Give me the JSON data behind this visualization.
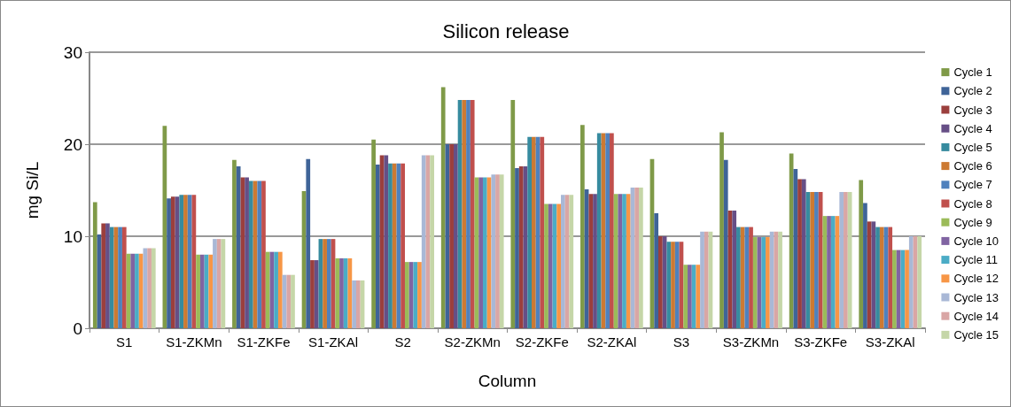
{
  "chart_data": {
    "type": "bar",
    "title": "Silicon release",
    "xlabel": "Column",
    "ylabel": "mg Si/L",
    "categories": [
      "S1",
      "S1-ZKMn",
      "S1-ZKFe",
      "S1-ZKAl",
      "S2",
      "S2-ZKMn",
      "S2-ZKFe",
      "S2-ZKAl",
      "S3",
      "S3-ZKMn",
      "S3-ZKFe",
      "S3-ZKAl"
    ],
    "ylim": [
      0,
      30
    ],
    "yticks": [
      0,
      10,
      20,
      30
    ],
    "grid": "y",
    "legend": "right",
    "series": [
      {
        "name": "Cycle 1",
        "color": "#7f9a48",
        "values": [
          13.7,
          22.0,
          18.3,
          14.9,
          20.5,
          26.2,
          24.8,
          22.1,
          18.4,
          21.3,
          19.0,
          16.1
        ]
      },
      {
        "name": "Cycle 2",
        "color": "#3f6498",
        "values": [
          10.2,
          14.1,
          17.6,
          18.4,
          17.8,
          20.0,
          17.4,
          15.1,
          12.5,
          18.3,
          17.3,
          13.6
        ]
      },
      {
        "name": "Cycle 3",
        "color": "#9b3f3d",
        "values": [
          11.4,
          14.3,
          16.4,
          7.4,
          18.8,
          20.0,
          17.6,
          14.6,
          10.0,
          12.8,
          16.2,
          11.6
        ]
      },
      {
        "name": "Cycle 4",
        "color": "#664f86",
        "values": [
          11.4,
          14.3,
          16.4,
          7.4,
          18.8,
          20.0,
          17.6,
          14.6,
          10.0,
          12.8,
          16.2,
          11.6
        ]
      },
      {
        "name": "Cycle 5",
        "color": "#378b9f",
        "values": [
          11.0,
          14.5,
          16.0,
          9.7,
          17.9,
          24.8,
          20.8,
          21.2,
          9.4,
          11.0,
          14.8,
          11.0
        ]
      },
      {
        "name": "Cycle 6",
        "color": "#cc7a33",
        "values": [
          11.0,
          14.5,
          16.0,
          9.7,
          17.9,
          24.8,
          20.8,
          21.2,
          9.4,
          11.0,
          14.8,
          11.0
        ]
      },
      {
        "name": "Cycle 7",
        "color": "#4f81bd",
        "values": [
          11.0,
          14.5,
          16.0,
          9.7,
          17.9,
          24.8,
          20.8,
          21.2,
          9.4,
          11.0,
          14.8,
          11.0
        ]
      },
      {
        "name": "Cycle 8",
        "color": "#c0504d",
        "values": [
          11.0,
          14.5,
          16.0,
          9.7,
          17.9,
          24.8,
          20.8,
          21.2,
          9.4,
          11.0,
          14.8,
          11.0
        ]
      },
      {
        "name": "Cycle 9",
        "color": "#9bbb59",
        "values": [
          8.1,
          8.0,
          8.3,
          7.6,
          7.2,
          16.4,
          13.5,
          14.6,
          6.9,
          9.9,
          12.2,
          8.5
        ]
      },
      {
        "name": "Cycle 10",
        "color": "#8064a2",
        "values": [
          8.1,
          8.0,
          8.3,
          7.6,
          7.2,
          16.4,
          13.5,
          14.6,
          6.9,
          9.9,
          12.2,
          8.5
        ]
      },
      {
        "name": "Cycle 11",
        "color": "#4bacc6",
        "values": [
          8.1,
          8.0,
          8.3,
          7.6,
          7.2,
          16.4,
          13.5,
          14.6,
          6.9,
          9.9,
          12.2,
          8.5
        ]
      },
      {
        "name": "Cycle 12",
        "color": "#f79646",
        "values": [
          8.1,
          8.0,
          8.3,
          7.6,
          7.2,
          16.4,
          13.5,
          14.6,
          6.9,
          9.9,
          12.2,
          8.5
        ]
      },
      {
        "name": "Cycle 13",
        "color": "#a9b8d6",
        "values": [
          8.7,
          9.7,
          5.8,
          5.2,
          18.8,
          16.7,
          14.5,
          15.3,
          10.5,
          10.5,
          14.8,
          10.0
        ]
      },
      {
        "name": "Cycle 14",
        "color": "#d9a6a5",
        "values": [
          8.7,
          9.7,
          5.8,
          5.2,
          18.8,
          16.7,
          14.5,
          15.3,
          10.5,
          10.5,
          14.8,
          10.0
        ]
      },
      {
        "name": "Cycle 15",
        "color": "#c5d6a8",
        "values": [
          8.7,
          9.7,
          5.8,
          5.2,
          18.8,
          16.7,
          14.5,
          15.3,
          10.5,
          10.5,
          14.8,
          10.0
        ]
      }
    ]
  }
}
